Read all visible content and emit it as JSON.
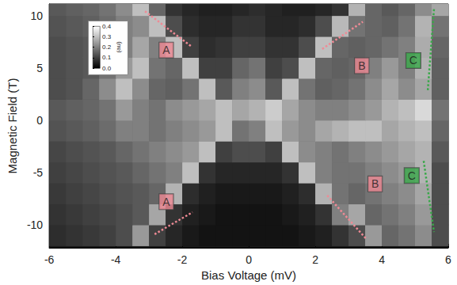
{
  "chart_data": {
    "type": "heatmap",
    "x_label": "Bias Voltage (mV)",
    "y_label": "Magnetic Field (T)",
    "xlim": [
      -6,
      6
    ],
    "ylim": [
      -12.2,
      11.1
    ],
    "xticks": [
      -6,
      -4,
      -2,
      0,
      2,
      4,
      6
    ],
    "yticks": [
      -10,
      -5,
      0,
      5,
      10
    ],
    "grid": false,
    "cells": {
      "x": [
        -5.75,
        -5.25,
        -4.75,
        -4.25,
        -3.75,
        -3.25,
        -2.75,
        -2.25,
        -1.75,
        -1.25,
        -0.75,
        -0.25,
        0.25,
        0.75,
        1.25,
        1.75,
        2.25,
        2.75,
        3.25,
        3.75,
        4.25,
        4.75,
        5.25,
        5.75
      ],
      "y": [
        -11,
        -9,
        -7,
        -5,
        -3,
        -1,
        1,
        3,
        5,
        7,
        9,
        11
      ],
      "values": [
        [
          0.07,
          0.08,
          0.09,
          0.1,
          0.12,
          0.24,
          0.1,
          0.06,
          0.04,
          0.03,
          0.03,
          0.03,
          0.03,
          0.03,
          0.03,
          0.04,
          0.05,
          0.08,
          0.12,
          0.24,
          0.16,
          0.18,
          0.22,
          0.12
        ],
        [
          0.08,
          0.09,
          0.1,
          0.11,
          0.12,
          0.14,
          0.26,
          0.08,
          0.05,
          0.04,
          0.03,
          0.03,
          0.03,
          0.03,
          0.04,
          0.05,
          0.08,
          0.2,
          0.26,
          0.16,
          0.18,
          0.2,
          0.24,
          0.12
        ],
        [
          0.09,
          0.1,
          0.11,
          0.12,
          0.13,
          0.14,
          0.16,
          0.28,
          0.07,
          0.05,
          0.04,
          0.04,
          0.04,
          0.04,
          0.05,
          0.07,
          0.28,
          0.18,
          0.16,
          0.18,
          0.2,
          0.22,
          0.26,
          0.12
        ],
        [
          0.1,
          0.11,
          0.12,
          0.13,
          0.14,
          0.16,
          0.18,
          0.2,
          0.3,
          0.08,
          0.06,
          0.06,
          0.06,
          0.06,
          0.08,
          0.3,
          0.2,
          0.18,
          0.18,
          0.2,
          0.22,
          0.24,
          0.28,
          0.12
        ],
        [
          0.11,
          0.12,
          0.13,
          0.14,
          0.16,
          0.18,
          0.2,
          0.22,
          0.24,
          0.3,
          0.1,
          0.12,
          0.12,
          0.1,
          0.3,
          0.22,
          0.2,
          0.18,
          0.2,
          0.22,
          0.24,
          0.26,
          0.28,
          0.14
        ],
        [
          0.13,
          0.14,
          0.15,
          0.17,
          0.2,
          0.2,
          0.18,
          0.2,
          0.22,
          0.24,
          0.3,
          0.18,
          0.2,
          0.3,
          0.24,
          0.22,
          0.26,
          0.28,
          0.3,
          0.3,
          0.26,
          0.28,
          0.3,
          0.16
        ],
        [
          0.14,
          0.15,
          0.16,
          0.18,
          0.24,
          0.2,
          0.18,
          0.22,
          0.24,
          0.26,
          0.3,
          0.26,
          0.28,
          0.32,
          0.26,
          0.22,
          0.2,
          0.2,
          0.22,
          0.24,
          0.28,
          0.3,
          0.34,
          0.18
        ],
        [
          0.12,
          0.13,
          0.16,
          0.22,
          0.3,
          0.22,
          0.16,
          0.15,
          0.18,
          0.3,
          0.14,
          0.2,
          0.22,
          0.14,
          0.3,
          0.18,
          0.15,
          0.16,
          0.18,
          0.22,
          0.26,
          0.22,
          0.26,
          0.15
        ],
        [
          0.12,
          0.13,
          0.14,
          0.18,
          0.24,
          0.3,
          0.18,
          0.16,
          0.3,
          0.1,
          0.1,
          0.16,
          0.18,
          0.1,
          0.12,
          0.3,
          0.16,
          0.15,
          0.16,
          0.2,
          0.24,
          0.2,
          0.28,
          0.15
        ],
        [
          0.12,
          0.13,
          0.14,
          0.16,
          0.2,
          0.26,
          0.2,
          0.3,
          0.1,
          0.07,
          0.08,
          0.1,
          0.1,
          0.08,
          0.08,
          0.12,
          0.3,
          0.16,
          0.15,
          0.16,
          0.18,
          0.2,
          0.27,
          0.16
        ],
        [
          0.13,
          0.14,
          0.15,
          0.17,
          0.2,
          0.22,
          0.3,
          0.12,
          0.07,
          0.06,
          0.06,
          0.08,
          0.08,
          0.06,
          0.06,
          0.07,
          0.12,
          0.29,
          0.18,
          0.16,
          0.15,
          0.18,
          0.28,
          0.18
        ],
        [
          0.14,
          0.15,
          0.16,
          0.18,
          0.22,
          0.3,
          0.16,
          0.08,
          0.06,
          0.05,
          0.05,
          0.06,
          0.07,
          0.06,
          0.05,
          0.05,
          0.06,
          0.08,
          0.28,
          0.16,
          0.14,
          0.16,
          0.22,
          0.26
        ]
      ]
    },
    "colorbar": {
      "label": "(au)",
      "range": [
        0,
        0.4
      ],
      "ticks": [
        {
          "value": 0,
          "label": "0.0"
        },
        0.1,
        0.2,
        0.3,
        0.4
      ]
    },
    "annotations": [
      {
        "label": "A",
        "color": "#ef8a95",
        "line_style": "dotted",
        "x": [
          -3.12,
          -1.71
        ],
        "y": [
          10.4,
          7.0
        ],
        "label_x": -2.48,
        "label_y": 6.7
      },
      {
        "label": "A",
        "color": "#ef8a95",
        "line_style": "dotted",
        "x": [
          -2.83,
          -1.69
        ],
        "y": [
          -10.9,
          -8.8
        ],
        "label_x": -2.48,
        "label_y": -7.8
      },
      {
        "label": "B",
        "color": "#ef8a95",
        "line_style": "dotted",
        "x": [
          2.21,
          3.43
        ],
        "y": [
          6.8,
          9.4
        ],
        "label_x": 3.4,
        "label_y": 5.2
      },
      {
        "label": "B",
        "color": "#ef8a95",
        "line_style": "dotted",
        "x": [
          2.36,
          3.52
        ],
        "y": [
          -7.2,
          -11.3
        ],
        "label_x": 3.8,
        "label_y": -6.1
      },
      {
        "label": "C",
        "color": "#3aa84a",
        "line_style": "dotted",
        "x": [
          5.57,
          5.38
        ],
        "y": [
          10.6,
          2.7
        ],
        "label_x": 4.95,
        "label_y": 5.7
      },
      {
        "label": "C",
        "color": "#3aa84a",
        "line_style": "dotted",
        "x": [
          5.26,
          5.57
        ],
        "y": [
          -3.9,
          -10.7
        ],
        "label_x": 4.9,
        "label_y": -5.3
      }
    ]
  }
}
